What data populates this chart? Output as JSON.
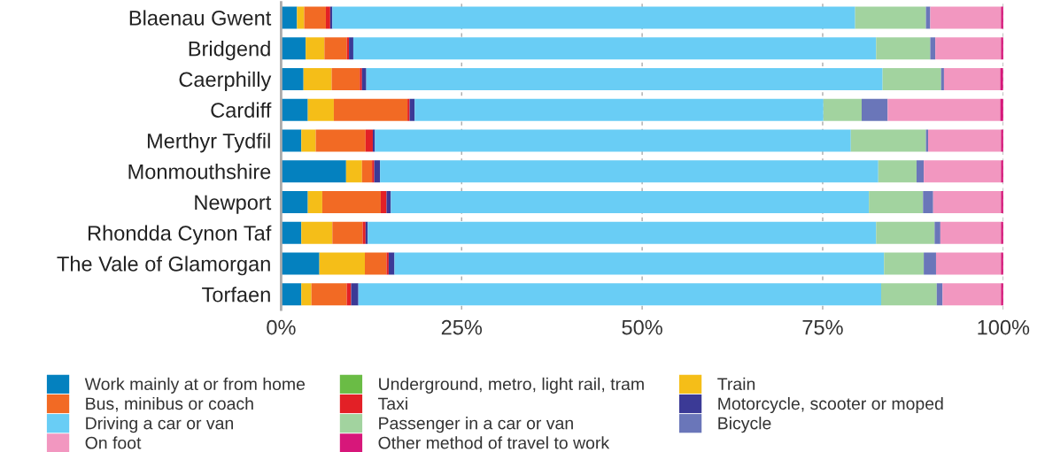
{
  "chart_data": {
    "type": "bar",
    "orientation": "horizontal",
    "stacked": true,
    "categories": [
      "Blaenau Gwent",
      "Bridgend",
      "Caerphilly",
      "Cardiff",
      "Merthyr Tydfil",
      "Monmouthshire",
      "Newport",
      "Rhondda Cynon Taf",
      "The Vale of Glamorgan",
      "Torfaen"
    ],
    "series": [
      {
        "name": "Work mainly at or from home",
        "color": "#0481bf",
        "values": [
          2.2,
          3.4,
          3.1,
          3.7,
          2.8,
          9.0,
          3.7,
          2.8,
          5.3,
          2.8
        ]
      },
      {
        "name": "Underground, metro, light rail, tram",
        "color": "#6abc45",
        "values": [
          0,
          0,
          0,
          0,
          0,
          0,
          0,
          0,
          0,
          0
        ]
      },
      {
        "name": "Train",
        "color": "#f5be18",
        "values": [
          1.0,
          2.6,
          3.9,
          3.6,
          2.0,
          2.2,
          2.0,
          4.3,
          6.3,
          1.4
        ]
      },
      {
        "name": "Bus, minibus or coach",
        "color": "#f26a24",
        "values": [
          3.0,
          3.1,
          3.9,
          10.2,
          6.9,
          1.4,
          8.1,
          4.2,
          3.0,
          4.9
        ]
      },
      {
        "name": "Taxi",
        "color": "#e32026",
        "values": [
          0.6,
          0.3,
          0.3,
          0.3,
          1.0,
          0.3,
          0.8,
          0.4,
          0.3,
          0.6
        ]
      },
      {
        "name": "Motorcycle, scooter or moped",
        "color": "#3b3a96",
        "values": [
          0.3,
          0.6,
          0.6,
          0.7,
          0.3,
          0.8,
          0.6,
          0.3,
          0.8,
          1.0
        ]
      },
      {
        "name": "Driving a car or van",
        "color": "#69cdf5",
        "values": [
          72.4,
          72.4,
          71.5,
          56.6,
          65.9,
          69.0,
          66.2,
          70.4,
          67.8,
          72.4
        ]
      },
      {
        "name": "Passenger in a car or van",
        "color": "#a2d39f",
        "values": [
          9.8,
          7.5,
          8.1,
          5.3,
          10.4,
          5.3,
          7.5,
          8.1,
          5.5,
          7.7
        ]
      },
      {
        "name": "Bicycle",
        "color": "#6a76b9",
        "values": [
          0.6,
          0.7,
          0.4,
          3.6,
          0.3,
          1.0,
          1.4,
          0.8,
          1.7,
          0.8
        ]
      },
      {
        "name": "On foot",
        "color": "#f297c0",
        "values": [
          9.8,
          9.1,
          7.8,
          15.6,
          10.1,
          10.7,
          9.4,
          8.4,
          9.0,
          8.1
        ]
      },
      {
        "name": "Other method of travel to work",
        "color": "#d7177a",
        "values": [
          0.4,
          0.4,
          0.4,
          0.5,
          0.4,
          0.5,
          0.4,
          0.4,
          0.5,
          0.4
        ]
      }
    ],
    "xlim": [
      0,
      100
    ],
    "xticks": [
      {
        "value": 0,
        "label": "0%"
      },
      {
        "value": 25,
        "label": "25%"
      },
      {
        "value": 50,
        "label": "50%"
      },
      {
        "value": 75,
        "label": "75%"
      },
      {
        "value": 100,
        "label": "100%"
      }
    ],
    "grid": "x",
    "legend": "bottom"
  }
}
